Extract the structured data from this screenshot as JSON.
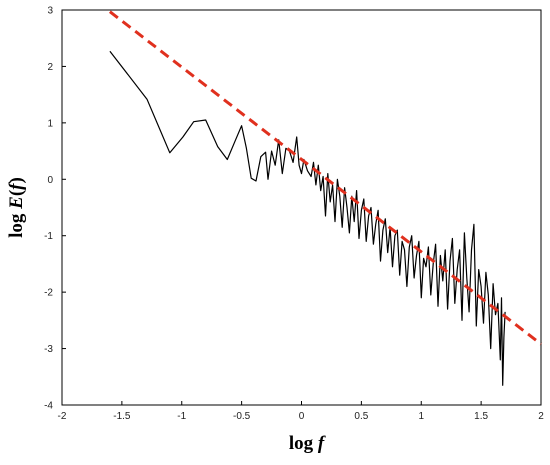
{
  "chart_data": {
    "type": "line",
    "title": "",
    "xlabel": {
      "prefix": "log ",
      "var": "f"
    },
    "ylabel": {
      "prefix": "log ",
      "var": "E",
      "open": "(",
      "arg": "f",
      "close": ")"
    },
    "xlim": [
      -2,
      2
    ],
    "ylim": [
      -4,
      3
    ],
    "x_ticks": [
      -2,
      -1.5,
      -1,
      -0.5,
      0,
      0.5,
      1,
      1.5,
      2
    ],
    "x_tick_labels": [
      "-2",
      "-1.5",
      "-1",
      "-0.5",
      "0",
      "0.5",
      "1",
      "1.5",
      "2"
    ],
    "y_ticks": [
      -4,
      -3,
      -2,
      -1,
      0,
      1,
      2,
      3
    ],
    "y_tick_labels": [
      "-4",
      "-3",
      "-2",
      "-1",
      "0",
      "1",
      "2",
      "3"
    ],
    "grid": false,
    "legend": "none",
    "colors": {
      "spectrum": "#000000",
      "fit": "#e0301e",
      "axes": "#000000"
    },
    "series": [
      {
        "style": "solid",
        "x": [
          -1.6,
          -1.29,
          -1.1,
          -0.99,
          -0.9,
          -0.8,
          -0.7,
          -0.62,
          -0.55,
          -0.5,
          -0.46,
          -0.42,
          -0.38,
          -0.34,
          -0.3,
          -0.28,
          -0.25,
          -0.22,
          -0.19,
          -0.16,
          -0.13,
          -0.1,
          -0.07,
          -0.04,
          -0.02,
          0.0,
          0.02,
          0.05,
          0.08,
          0.1,
          0.12,
          0.14,
          0.16,
          0.18,
          0.2,
          0.22,
          0.24,
          0.26,
          0.28,
          0.3,
          0.32,
          0.34,
          0.36,
          0.38,
          0.4,
          0.42,
          0.44,
          0.46,
          0.48,
          0.5,
          0.52,
          0.54,
          0.56,
          0.58,
          0.6,
          0.62,
          0.64,
          0.66,
          0.68,
          0.7,
          0.72,
          0.74,
          0.76,
          0.78,
          0.8,
          0.82,
          0.84,
          0.86,
          0.88,
          0.9,
          0.92,
          0.94,
          0.96,
          0.98,
          1.0,
          1.02,
          1.04,
          1.06,
          1.08,
          1.1,
          1.12,
          1.14,
          1.16,
          1.18,
          1.2,
          1.22,
          1.24,
          1.26,
          1.28,
          1.3,
          1.32,
          1.34,
          1.36,
          1.38,
          1.4,
          1.42,
          1.44,
          1.46,
          1.48,
          1.5,
          1.52,
          1.54,
          1.56,
          1.58,
          1.6,
          1.62,
          1.64,
          1.66,
          1.67,
          1.68,
          1.69,
          1.7
        ],
        "y": [
          2.27,
          1.42,
          0.47,
          0.75,
          1.02,
          1.05,
          0.58,
          0.35,
          0.7,
          0.95,
          0.55,
          0.02,
          -0.03,
          0.4,
          0.48,
          0.0,
          0.5,
          0.25,
          0.7,
          0.1,
          0.55,
          0.5,
          0.3,
          0.75,
          0.25,
          0.1,
          0.35,
          0.15,
          0.05,
          0.3,
          -0.1,
          0.25,
          -0.2,
          0.05,
          -0.65,
          0.1,
          -0.4,
          -0.1,
          -0.75,
          0.0,
          -0.3,
          -0.85,
          -0.15,
          -0.5,
          -0.95,
          -0.3,
          -0.75,
          -0.2,
          -1.05,
          -0.55,
          -0.35,
          -1.1,
          -0.65,
          -0.5,
          -1.15,
          -0.8,
          -0.55,
          -1.45,
          -0.9,
          -0.7,
          -1.3,
          -0.85,
          -1.55,
          -1.0,
          -0.9,
          -1.7,
          -1.1,
          -1.25,
          -1.9,
          -1.2,
          -1.0,
          -1.75,
          -1.35,
          -1.1,
          -2.1,
          -1.4,
          -1.55,
          -1.2,
          -2.05,
          -1.5,
          -1.15,
          -2.25,
          -1.35,
          -1.8,
          -1.25,
          -2.3,
          -1.45,
          -1.05,
          -2.2,
          -1.6,
          -1.25,
          -2.5,
          -0.95,
          -1.75,
          -2.35,
          -1.25,
          -0.8,
          -2.6,
          -1.6,
          -1.9,
          -2.55,
          -1.65,
          -2.05,
          -3.0,
          -1.85,
          -2.4,
          -2.2,
          -3.2,
          -2.1,
          -3.65,
          -2.8,
          -2.35
        ]
      },
      {
        "style": "dashed",
        "x": [
          -1.6,
          2
        ],
        "y": [
          2.97,
          -2.92
        ]
      }
    ]
  }
}
